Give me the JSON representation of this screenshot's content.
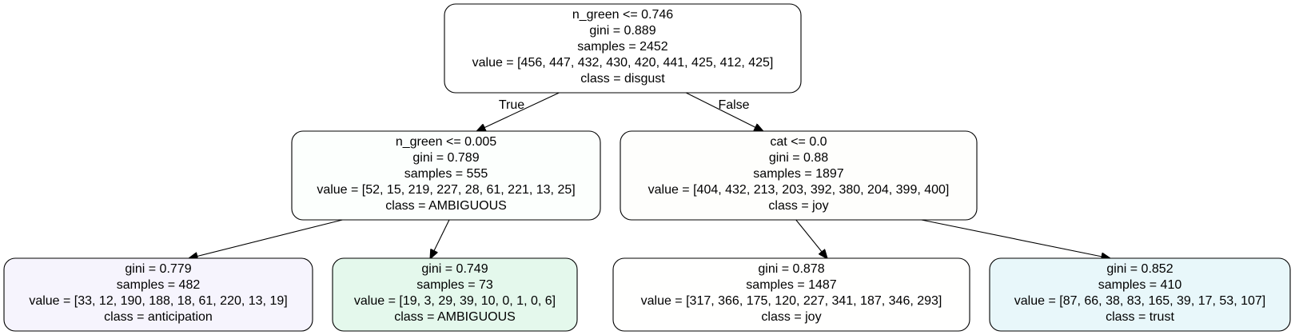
{
  "tree": {
    "nodes": [
      {
        "id": "root",
        "fill": "#ffffff",
        "lines": [
          "n_green <= 0.746",
          "gini = 0.889",
          "samples = 2452",
          "value = [456, 447, 432, 430, 420, 441, 425, 412, 425]",
          "class = disgust"
        ]
      },
      {
        "id": "left",
        "fill": "#fcfffd",
        "lines": [
          "n_green <= 0.005",
          "gini = 0.789",
          "samples = 555",
          "value = [52, 15, 219, 227, 28, 61, 221, 13, 25]",
          "class = AMBIGUOUS"
        ]
      },
      {
        "id": "right",
        "fill": "#fefefc",
        "lines": [
          "cat <= 0.0",
          "gini = 0.88",
          "samples = 1897",
          "value = [404, 432, 213, 203, 392, 380, 204, 399, 400]",
          "class = joy"
        ]
      },
      {
        "id": "leaf1",
        "fill": "#f6f4fd",
        "lines": [
          "gini = 0.779",
          "samples = 482",
          "value = [33, 12, 190, 188, 18, 61, 220, 13, 19]",
          "class = anticipation"
        ]
      },
      {
        "id": "leaf2",
        "fill": "#e4f8ec",
        "lines": [
          "gini = 0.749",
          "samples = 73",
          "value = [19, 3, 29, 39, 10, 0, 1, 0, 6]",
          "class = AMBIGUOUS"
        ]
      },
      {
        "id": "leaf3",
        "fill": "#fffffe",
        "lines": [
          "gini = 0.878",
          "samples = 1487",
          "value = [317, 366, 175, 120, 227, 341, 187, 346, 293]",
          "class = joy"
        ]
      },
      {
        "id": "leaf4",
        "fill": "#e8f7fa",
        "lines": [
          "gini = 0.852",
          "samples = 410",
          "value = [87, 66, 38, 83, 165, 39, 17, 53, 107]",
          "class = trust"
        ]
      }
    ],
    "edges": [
      {
        "from": "root",
        "to": "left",
        "label": "True"
      },
      {
        "from": "root",
        "to": "right",
        "label": "False"
      },
      {
        "from": "left",
        "to": "leaf1",
        "label": ""
      },
      {
        "from": "left",
        "to": "leaf2",
        "label": ""
      },
      {
        "from": "right",
        "to": "leaf3",
        "label": ""
      },
      {
        "from": "right",
        "to": "leaf4",
        "label": ""
      }
    ]
  }
}
